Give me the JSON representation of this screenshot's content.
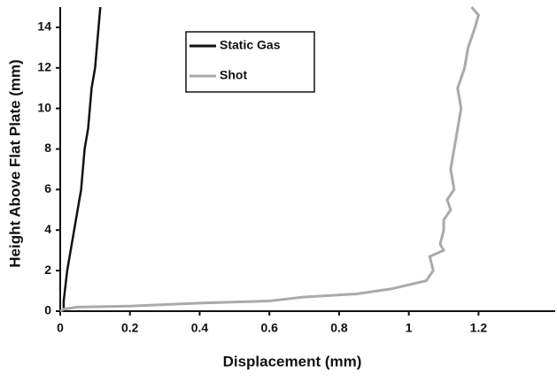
{
  "chart_data": {
    "type": "line",
    "x_label": "Displacement (mm)",
    "y_label": "Height Above Flat Plate (mm)",
    "xlim": [
      0,
      1.42
    ],
    "xticks": [
      0,
      0.2,
      0.4,
      0.6,
      0.8,
      1,
      1.2
    ],
    "ylim": [
      0,
      15
    ],
    "yticks": [
      0,
      2,
      4,
      6,
      8,
      10,
      12,
      14
    ],
    "series": [
      {
        "name": "Static Gas",
        "color": "#111111",
        "x": [
          0.01,
          0.01,
          0.02,
          0.03,
          0.04,
          0.05,
          0.06,
          0.065,
          0.07,
          0.08,
          0.085,
          0.09,
          0.1,
          0.105,
          0.11,
          0.115
        ],
        "values": [
          0,
          0.5,
          2,
          3,
          4,
          5,
          6,
          7,
          8,
          9,
          10,
          11,
          12,
          13,
          14,
          15
        ]
      },
      {
        "name": "Shot",
        "color": "#aaaaaa",
        "x": [
          0,
          0.01,
          0.05,
          0.2,
          0.4,
          0.6,
          0.7,
          0.85,
          0.95,
          1.05,
          1.07,
          1.06,
          1.1,
          1.09,
          1.1,
          1.1,
          1.12,
          1.11,
          1.13,
          1.12,
          1.13,
          1.14,
          1.15,
          1.14,
          1.16,
          1.17,
          1.19,
          1.2,
          1.18
        ],
        "values": [
          0,
          0.1,
          0.2,
          0.25,
          0.4,
          0.5,
          0.7,
          0.85,
          1.1,
          1.5,
          2,
          2.7,
          3,
          3.3,
          4,
          4.5,
          5,
          5.5,
          6,
          7,
          8,
          9,
          10,
          11,
          12,
          13,
          14,
          14.6,
          15
        ]
      }
    ]
  }
}
